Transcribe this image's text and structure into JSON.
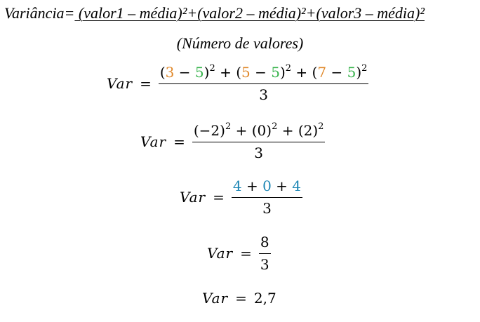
{
  "header": {
    "prefix": "Variância=",
    "numerator": " (valor1 – média)²+(valor2 – média)²+(valor3 – média)²",
    "denominator": "(Número de valores)"
  },
  "var_label": "Var",
  "equals": "=",
  "eq1": {
    "a1": "3",
    "minus1": "−",
    "m1": "5",
    "close1": ")",
    "open1": "(",
    "plus1": "+",
    "a2": "5",
    "minus2": "−",
    "m2": "5",
    "plus2": "+",
    "a3": "7",
    "minus3": "−",
    "m3": "5",
    "exp": "2",
    "denominator": "3"
  },
  "eq2": {
    "t1": "(−2)",
    "t2": "(0)",
    "t3": "(2)",
    "plus": "+",
    "exp": "2",
    "denominator": "3"
  },
  "eq3": {
    "v1": "4",
    "v2": "0",
    "v3": "4",
    "plus": "+",
    "denominator": "3"
  },
  "eq4": {
    "numerator": "8",
    "denominator": "3"
  },
  "eq5": {
    "result": "2,7"
  },
  "colors": {
    "value": "#E0882A",
    "mean": "#35B24A",
    "squared": "#1F87B5"
  }
}
